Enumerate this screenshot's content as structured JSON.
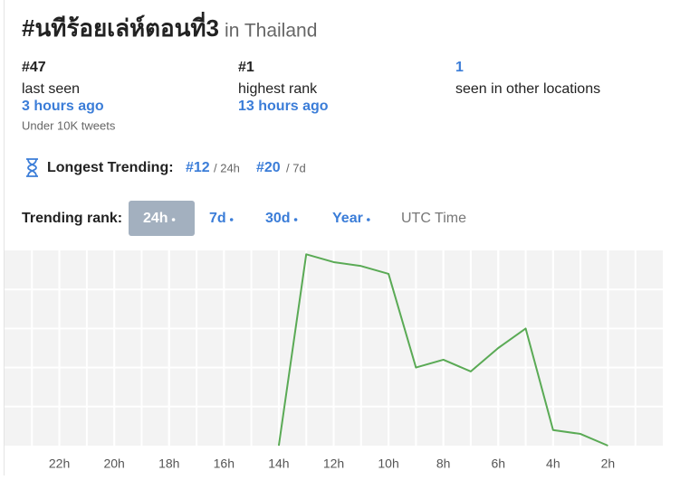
{
  "header": {
    "title": "#นทีร้อยเล่ห์ตอนที่3",
    "location": "in Thailand"
  },
  "stats": [
    {
      "value": "#47",
      "label": "last seen",
      "time": "3 hours ago",
      "note": "Under 10K tweets"
    },
    {
      "value": "#1",
      "label": "highest rank",
      "time": "13 hours ago"
    },
    {
      "value": "1",
      "label": "seen in other locations"
    }
  ],
  "longest": {
    "label": "Longest Trending:",
    "items": [
      {
        "rank": "#12",
        "period": "/ 24h"
      },
      {
        "rank": "#20",
        "period": "/ 7d"
      }
    ]
  },
  "controls": {
    "label": "Trending rank:",
    "tabs": [
      "24h",
      "7d",
      "30d",
      "Year"
    ],
    "timezone": "UTC Time"
  },
  "chart_data": {
    "type": "line",
    "x": [
      14,
      13,
      12,
      11,
      10,
      9,
      8,
      7,
      6,
      5,
      4,
      3,
      2
    ],
    "values": [
      50,
      1,
      3,
      4,
      6,
      30,
      28,
      31,
      25,
      20,
      46,
      47,
      50
    ],
    "color": "#5aaa55",
    "xlim": [
      24,
      0
    ],
    "xticks": [
      {
        "value": 22,
        "label": "22h"
      },
      {
        "value": 20,
        "label": "20h"
      },
      {
        "value": 18,
        "label": "18h"
      },
      {
        "value": 16,
        "label": "16h"
      },
      {
        "value": 14,
        "label": "14h"
      },
      {
        "value": 12,
        "label": "12h"
      },
      {
        "value": 10,
        "label": "10h"
      },
      {
        "value": 8,
        "label": "8h"
      },
      {
        "value": 6,
        "label": "6h"
      },
      {
        "value": 4,
        "label": "4h"
      },
      {
        "value": 2,
        "label": "2h"
      }
    ],
    "ylim": [
      50,
      0
    ],
    "yticks": [
      10,
      20,
      30,
      40
    ],
    "grid": true
  }
}
